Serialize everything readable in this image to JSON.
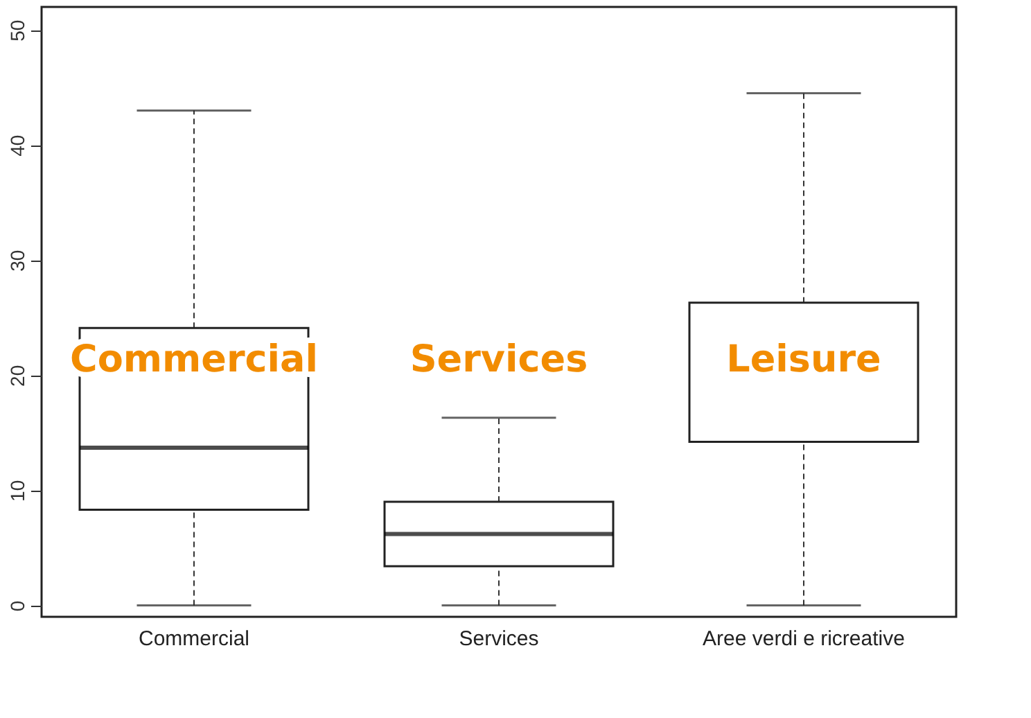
{
  "chart_data": {
    "type": "box",
    "categories": [
      "Commercial",
      "Services",
      "Aree verdi e ricreative"
    ],
    "boxes": [
      {
        "low": 0,
        "q1": 8.3,
        "median": 13.7,
        "q3": 24.1,
        "high": 43
      },
      {
        "low": 0,
        "q1": 3.4,
        "median": 6.2,
        "q3": 9.0,
        "high": 16.3
      },
      {
        "low": 0,
        "q1": 14.2,
        "median": null,
        "q3": 26.3,
        "high": 44.5
      }
    ],
    "ylim": [
      -1,
      52
    ],
    "yticks": [
      0,
      10,
      20,
      30,
      40,
      50
    ],
    "annotations": [
      "Commercial",
      "Services",
      "Leisure"
    ]
  }
}
